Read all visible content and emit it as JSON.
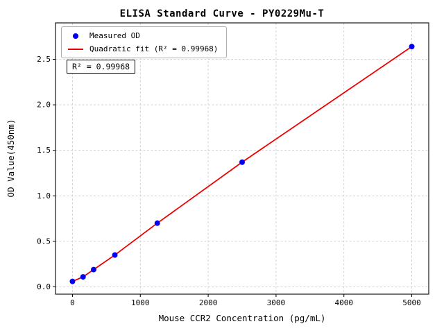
{
  "chart_data": {
    "type": "scatter",
    "title": "ELISA Standard Curve - PY0229Mu-T",
    "xlabel": "Mouse CCR2 Concentration (pg/mL)",
    "ylabel": "OD Value(450nm)",
    "x": [
      0,
      156,
      312,
      625,
      1250,
      2500,
      5000
    ],
    "y": [
      0.06,
      0.11,
      0.19,
      0.35,
      0.7,
      1.37,
      2.64
    ],
    "fit": {
      "name": "Quadratic fit",
      "r_squared": 0.99968
    },
    "legend": [
      {
        "label": "Measured OD",
        "marker": "dot",
        "color": "#0000ee"
      },
      {
        "label": "Quadratic fit (R² = 0.99968)",
        "marker": "line",
        "color": "#ee0000"
      }
    ],
    "legend_position": "upper-left",
    "annotation": "R² = 0.99968",
    "xticks": [
      0,
      1000,
      2000,
      3000,
      4000,
      5000
    ],
    "yticks": [
      0.0,
      0.5,
      1.0,
      1.5,
      2.0,
      2.5
    ],
    "xlim": [
      -250,
      5250
    ],
    "ylim": [
      -0.08,
      2.9
    ],
    "grid": true,
    "colors": {
      "point": "#0000ee",
      "line": "#ee0000",
      "grid": "#c9c9c9",
      "axis": "#000000",
      "background": "#ffffff"
    }
  }
}
